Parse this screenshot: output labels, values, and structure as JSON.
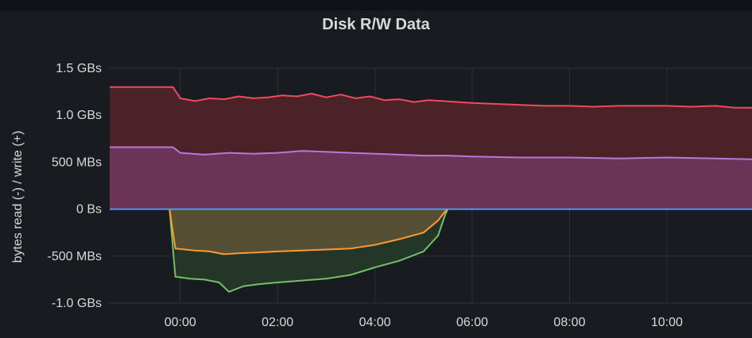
{
  "panel": {
    "title": "Disk R/W Data",
    "ylabel": "bytes read (-) / write (+)"
  },
  "chart_data": {
    "type": "area",
    "title": "Disk R/W Data",
    "xlabel": "",
    "ylabel": "bytes read (-) / write (+)",
    "x_unit": "hours",
    "xlim": [
      -1.45,
      11.75
    ],
    "ylim": [
      -1.0,
      1.5
    ],
    "y_unit": "GBs",
    "grid": true,
    "legend": "none",
    "x_ticks": [
      {
        "value": 0,
        "label": "00:00"
      },
      {
        "value": 2,
        "label": "02:00"
      },
      {
        "value": 4,
        "label": "04:00"
      },
      {
        "value": 6,
        "label": "06:00"
      },
      {
        "value": 8,
        "label": "08:00"
      },
      {
        "value": 10,
        "label": "10:00"
      }
    ],
    "y_ticks": [
      {
        "value": 1.5,
        "label": "1.5 GBs"
      },
      {
        "value": 1.0,
        "label": "1.0 GBs"
      },
      {
        "value": 0.5,
        "label": "500 MBs"
      },
      {
        "value": 0.0,
        "label": "0 Bs"
      },
      {
        "value": -0.5,
        "label": "-500 MBs"
      },
      {
        "value": -1.0,
        "label": "-1.0 GBs"
      }
    ],
    "series": [
      {
        "color": "#f2495c",
        "fill": "#4a2228",
        "points": [
          [
            -1.45,
            1.3
          ],
          [
            -0.15,
            1.3
          ],
          [
            0.0,
            1.18
          ],
          [
            0.3,
            1.15
          ],
          [
            0.6,
            1.18
          ],
          [
            0.9,
            1.17
          ],
          [
            1.2,
            1.2
          ],
          [
            1.5,
            1.18
          ],
          [
            1.8,
            1.19
          ],
          [
            2.1,
            1.21
          ],
          [
            2.4,
            1.2
          ],
          [
            2.7,
            1.23
          ],
          [
            3.0,
            1.19
          ],
          [
            3.3,
            1.22
          ],
          [
            3.6,
            1.18
          ],
          [
            3.9,
            1.2
          ],
          [
            4.2,
            1.16
          ],
          [
            4.5,
            1.17
          ],
          [
            4.8,
            1.14
          ],
          [
            5.1,
            1.16
          ],
          [
            5.4,
            1.15
          ],
          [
            5.7,
            1.14
          ],
          [
            6.0,
            1.13
          ],
          [
            6.5,
            1.12
          ],
          [
            7.0,
            1.11
          ],
          [
            7.5,
            1.1
          ],
          [
            8.0,
            1.1
          ],
          [
            8.5,
            1.09
          ],
          [
            9.0,
            1.1
          ],
          [
            9.5,
            1.1
          ],
          [
            10.0,
            1.1
          ],
          [
            10.5,
            1.09
          ],
          [
            11.0,
            1.1
          ],
          [
            11.4,
            1.08
          ],
          [
            11.75,
            1.08
          ]
        ]
      },
      {
        "color": "#b877d9",
        "fill": "#6b3356",
        "points": [
          [
            -1.45,
            0.66
          ],
          [
            -0.15,
            0.66
          ],
          [
            0.0,
            0.6
          ],
          [
            0.5,
            0.58
          ],
          [
            1.0,
            0.6
          ],
          [
            1.5,
            0.59
          ],
          [
            2.0,
            0.6
          ],
          [
            2.5,
            0.62
          ],
          [
            3.0,
            0.61
          ],
          [
            3.5,
            0.6
          ],
          [
            4.0,
            0.59
          ],
          [
            4.5,
            0.58
          ],
          [
            5.0,
            0.57
          ],
          [
            5.5,
            0.57
          ],
          [
            6.0,
            0.56
          ],
          [
            7.0,
            0.55
          ],
          [
            8.0,
            0.55
          ],
          [
            9.0,
            0.54
          ],
          [
            10.0,
            0.55
          ],
          [
            11.0,
            0.54
          ],
          [
            11.75,
            0.53
          ]
        ]
      },
      {
        "color": "#73bf69",
        "fill": "#243628",
        "points": [
          [
            -0.22,
            0.0
          ],
          [
            -0.1,
            -0.72
          ],
          [
            0.2,
            -0.74
          ],
          [
            0.5,
            -0.75
          ],
          [
            0.8,
            -0.78
          ],
          [
            1.0,
            -0.88
          ],
          [
            1.3,
            -0.82
          ],
          [
            1.6,
            -0.8
          ],
          [
            2.0,
            -0.78
          ],
          [
            2.5,
            -0.76
          ],
          [
            3.0,
            -0.74
          ],
          [
            3.5,
            -0.7
          ],
          [
            4.0,
            -0.62
          ],
          [
            4.5,
            -0.55
          ],
          [
            5.0,
            -0.45
          ],
          [
            5.3,
            -0.28
          ],
          [
            5.45,
            -0.05
          ],
          [
            5.5,
            0.0
          ]
        ]
      },
      {
        "color": "#ff9830",
        "fill": "#555034",
        "points": [
          [
            -0.22,
            0.0
          ],
          [
            -0.1,
            -0.42
          ],
          [
            0.3,
            -0.44
          ],
          [
            0.6,
            -0.45
          ],
          [
            0.9,
            -0.48
          ],
          [
            1.2,
            -0.47
          ],
          [
            1.6,
            -0.46
          ],
          [
            2.0,
            -0.45
          ],
          [
            2.5,
            -0.44
          ],
          [
            3.0,
            -0.43
          ],
          [
            3.5,
            -0.42
          ],
          [
            4.0,
            -0.38
          ],
          [
            4.5,
            -0.32
          ],
          [
            5.0,
            -0.25
          ],
          [
            5.3,
            -0.12
          ],
          [
            5.45,
            -0.02
          ],
          [
            5.5,
            0.0
          ]
        ]
      }
    ]
  }
}
